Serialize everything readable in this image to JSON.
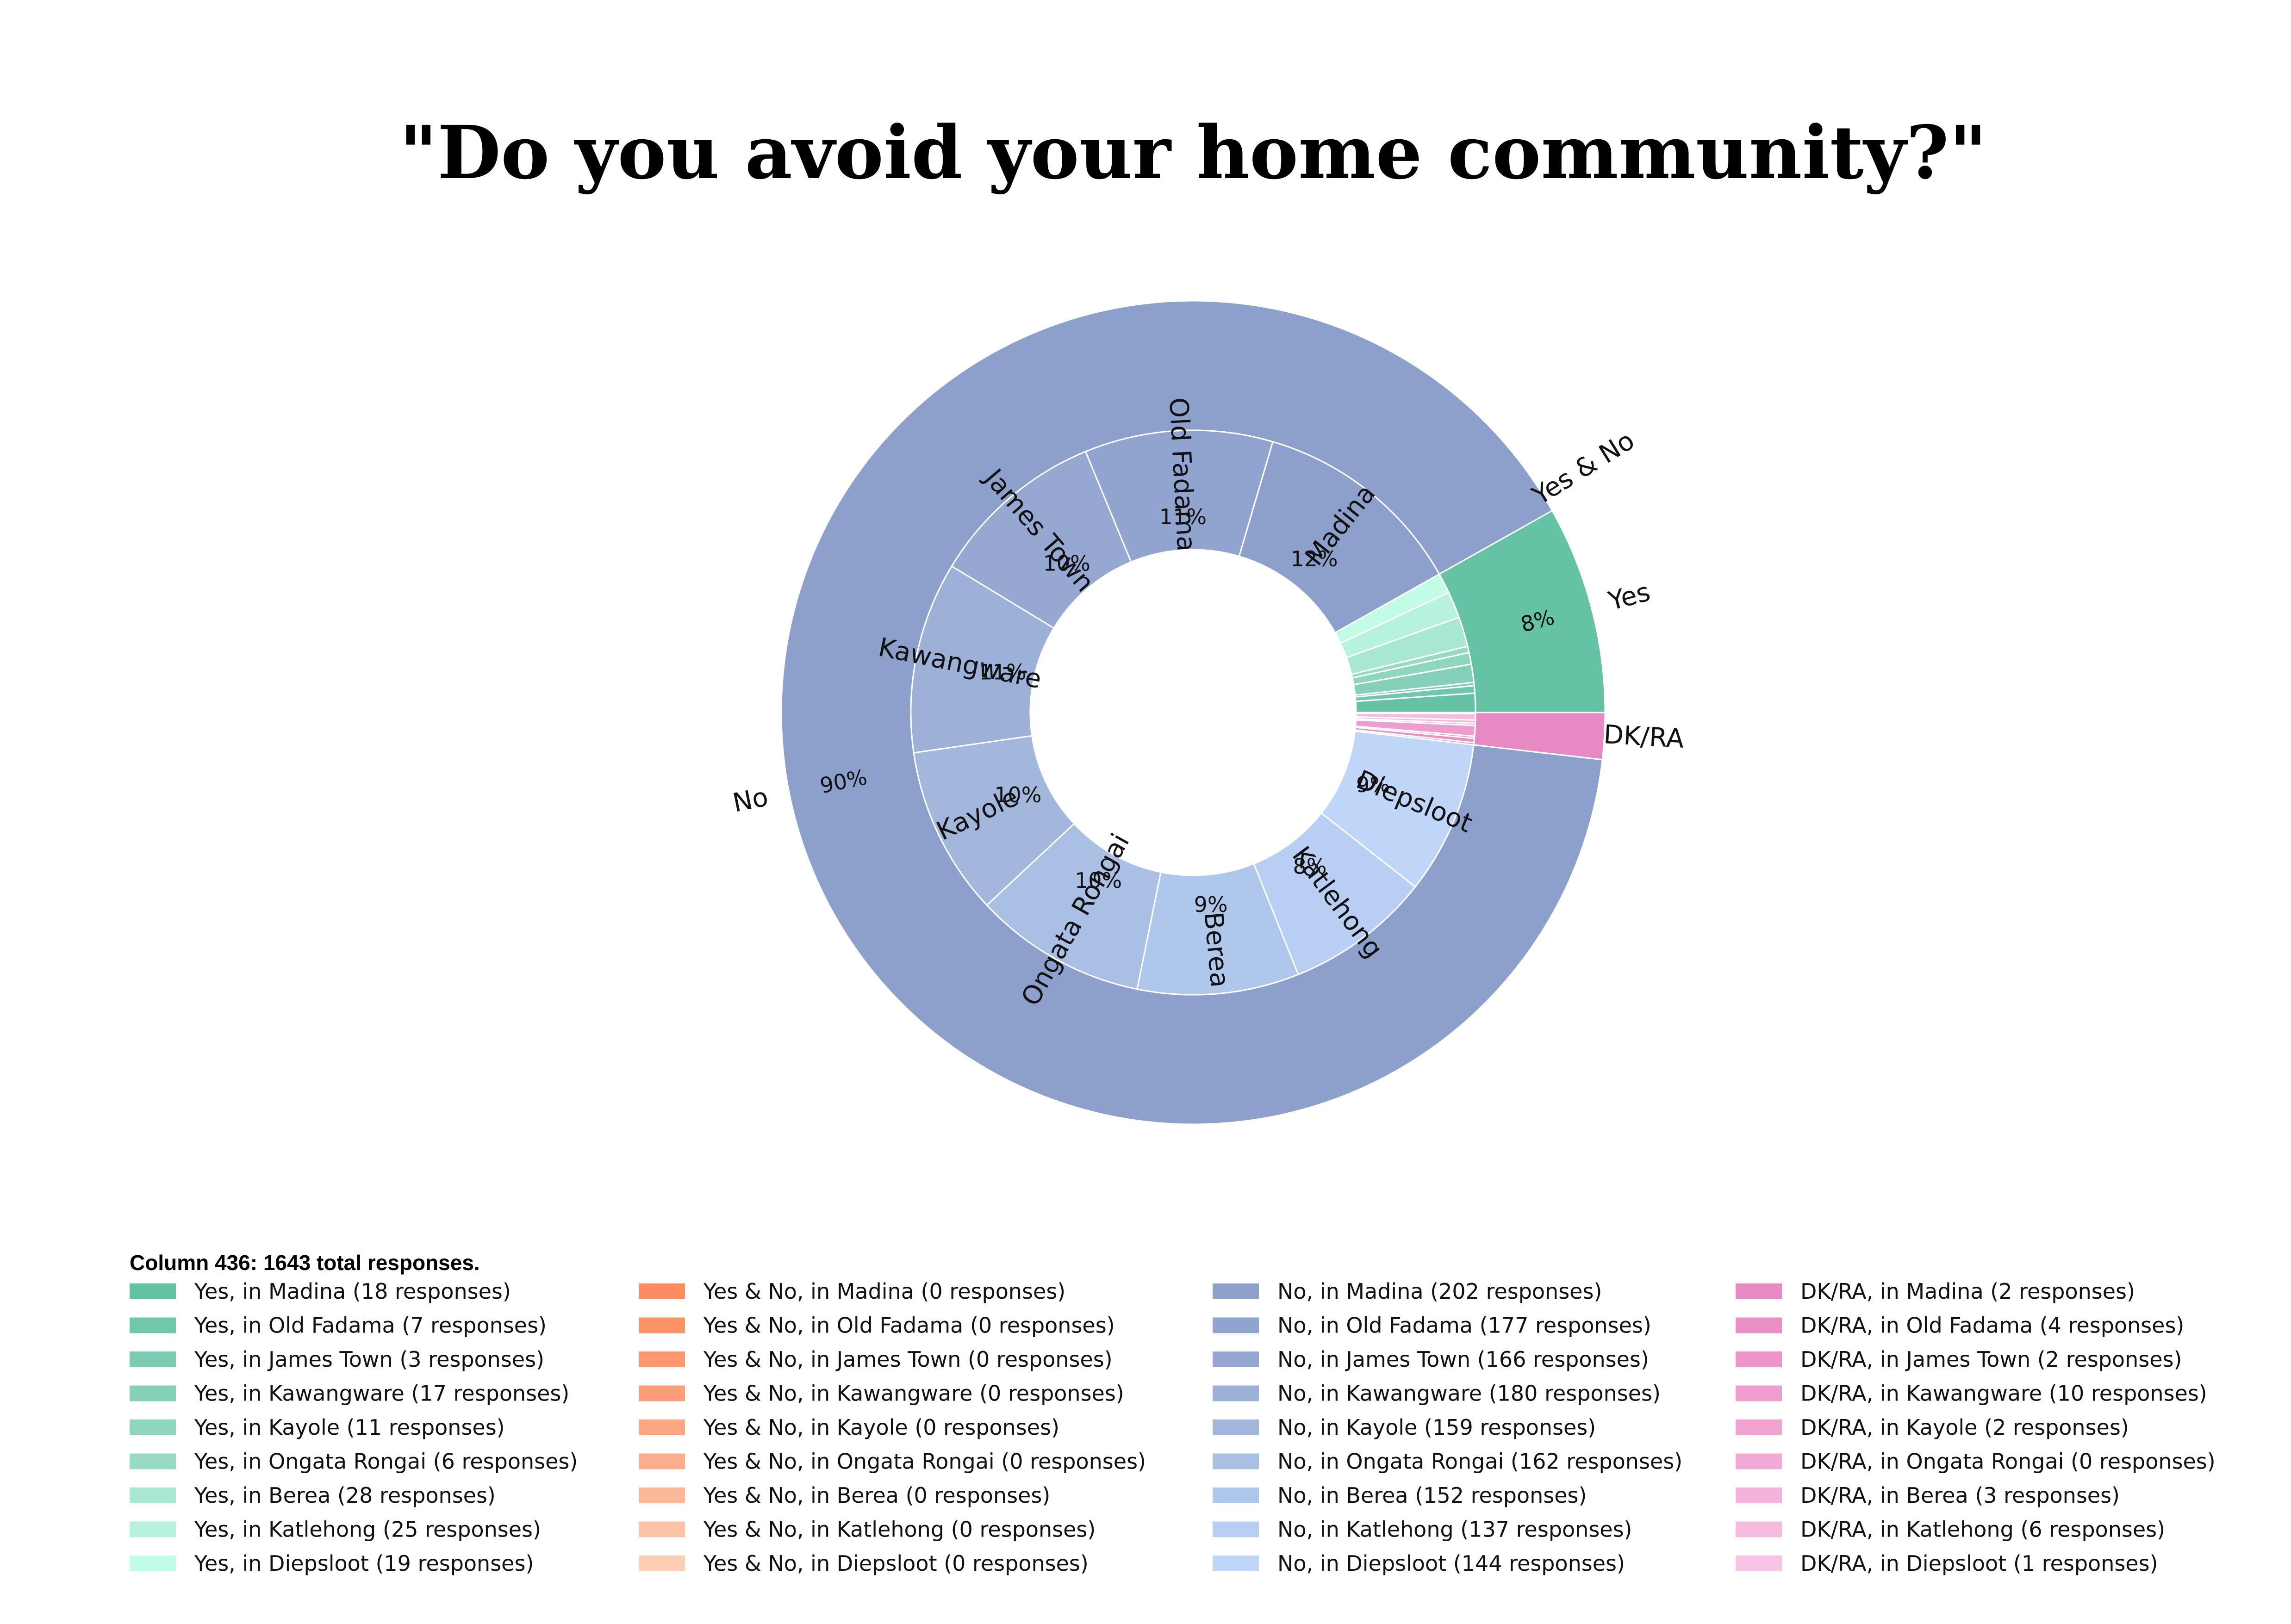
{
  "chart_data": {
    "type": "pie",
    "title": "\"Do you avoid your home community?\"",
    "legend_title": "Column 436: 1643 total responses.",
    "categories": [
      "Madina",
      "Old Fadama",
      "James Town",
      "Kawangware",
      "Kayole",
      "Ongata Rongai",
      "Berea",
      "Katlehong",
      "Diepsloot"
    ],
    "outer_ring": [
      {
        "name": "Yes",
        "value": 134,
        "label": "Yes",
        "pct": "8%",
        "color": "#66c2a5"
      },
      {
        "name": "Yes & No",
        "value": 0,
        "label": "Yes & No",
        "pct": "",
        "color": "#fc8d62"
      },
      {
        "name": "No",
        "value": 1479,
        "label": "No",
        "pct": "90%",
        "color": "#8da0cb"
      },
      {
        "name": "DK/RA",
        "value": 30,
        "label": "DK/RA",
        "pct": "",
        "color": "#e78ac3"
      }
    ],
    "series": [
      {
        "name": "Yes",
        "colors": [
          "#66c2a5",
          "#70c7ab",
          "#7acbb1",
          "#84d0b8",
          "#8ed6be",
          "#98dbc5",
          "#a8e8d3",
          "#b6f2dd",
          "#c2fbe6"
        ],
        "values": [
          18,
          7,
          3,
          17,
          11,
          6,
          28,
          25,
          19
        ]
      },
      {
        "name": "Yes & No",
        "colors": [
          "#fc8d62",
          "#fc9268",
          "#fc976f",
          "#fc9f78",
          "#fca682",
          "#fcae8c",
          "#fcb999",
          "#fcc3a6",
          "#fcceb4"
        ],
        "values": [
          0,
          0,
          0,
          0,
          0,
          0,
          0,
          0,
          0
        ]
      },
      {
        "name": "No",
        "colors": [
          "#8da0cb",
          "#91a4cf",
          "#96a8d2",
          "#9cb0d8",
          "#a3b7dd",
          "#aabfe4",
          "#b0c7ec",
          "#b8cff3",
          "#bfd6f9"
        ],
        "values": [
          202,
          177,
          166,
          180,
          159,
          162,
          152,
          137,
          144
        ]
      },
      {
        "name": "DK/RA",
        "colors": [
          "#e78ac3",
          "#ea8fc6",
          "#ed95ca",
          "#ef9cce",
          "#f1a3d2",
          "#f3aad6",
          "#f5b2db",
          "#f7bbe0",
          "#f9c4e5"
        ],
        "values": [
          2,
          4,
          2,
          10,
          2,
          0,
          3,
          6,
          1
        ]
      }
    ],
    "inner_labels": [
      {
        "name": "Madina",
        "pct": "12%"
      },
      {
        "name": "Old Fadama",
        "pct": "11%"
      },
      {
        "name": "James Town",
        "pct": "10%"
      },
      {
        "name": "Kawangware",
        "pct": "11%"
      },
      {
        "name": "Kayole",
        "pct": "10%"
      },
      {
        "name": "Ongata Rongai",
        "pct": "10%"
      },
      {
        "name": "Berea",
        "pct": "9%"
      },
      {
        "name": "Katlehong",
        "pct": "8%"
      },
      {
        "name": "Diepsloot",
        "pct": "9%"
      }
    ],
    "legend": [
      [
        "Yes, in Madina (18 responses)",
        "Yes, in Old Fadama (7 responses)",
        "Yes, in James Town (3 responses)",
        "Yes, in Kawangware (17 responses)",
        "Yes, in Kayole (11 responses)",
        "Yes, in Ongata Rongai (6 responses)",
        "Yes, in Berea (28 responses)",
        "Yes, in Katlehong (25 responses)",
        "Yes, in Diepsloot (19 responses)"
      ],
      [
        "Yes & No, in Madina (0 responses)",
        "Yes & No, in Old Fadama (0 responses)",
        "Yes & No, in James Town (0 responses)",
        "Yes & No, in Kawangware (0 responses)",
        "Yes & No, in Kayole (0 responses)",
        "Yes & No, in Ongata Rongai (0 responses)",
        "Yes & No, in Berea (0 responses)",
        "Yes & No, in Katlehong (0 responses)",
        "Yes & No, in Diepsloot (0 responses)"
      ],
      [
        "No, in Madina (202 responses)",
        "No, in Old Fadama (177 responses)",
        "No, in James Town (166 responses)",
        "No, in Kawangware (180 responses)",
        "No, in Kayole (159 responses)",
        "No, in Ongata Rongai (162 responses)",
        "No, in Berea (152 responses)",
        "No, in Katlehong (137 responses)",
        "No, in Diepsloot (144 responses)"
      ],
      [
        "DK/RA, in Madina (2 responses)",
        "DK/RA, in Old Fadama (4 responses)",
        "DK/RA, in James Town (2 responses)",
        "DK/RA, in Kawangware (10 responses)",
        "DK/RA, in Kayole (2 responses)",
        "DK/RA, in Ongata Rongai (0 responses)",
        "DK/RA, in Berea (3 responses)",
        "DK/RA, in Katlehong (6 responses)",
        "DK/RA, in Diepsloot (1 responses)"
      ]
    ]
  }
}
